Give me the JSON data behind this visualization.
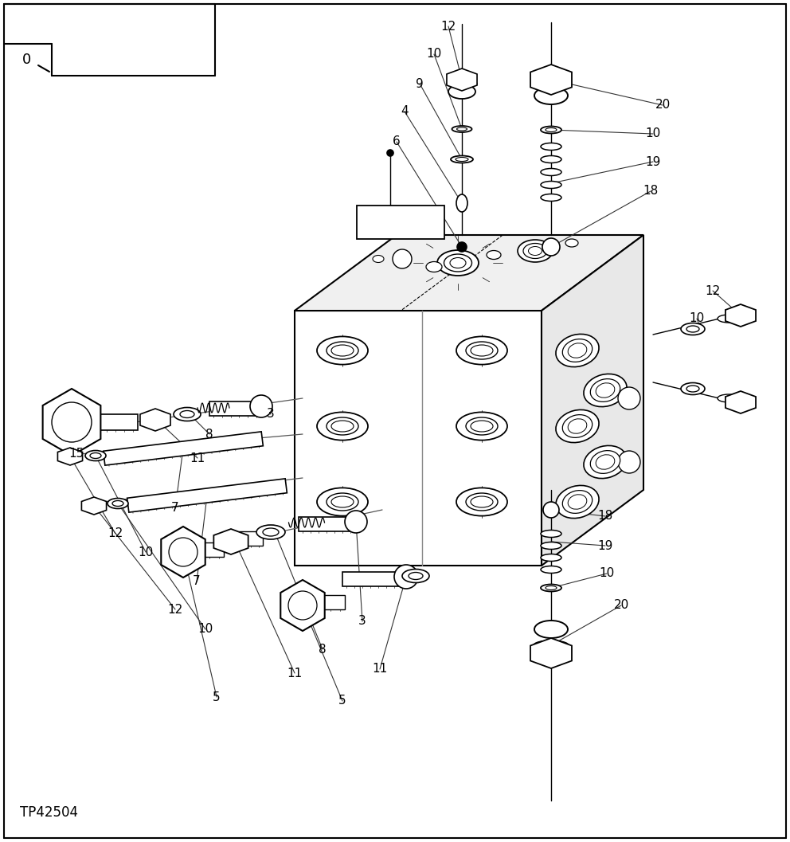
{
  "bg_color": "#ffffff",
  "line_color": "#000000",
  "text_color": "#000000",
  "part_code": "TP42504",
  "fig_width": 9.92,
  "fig_height": 10.57,
  "dpi": 100
}
